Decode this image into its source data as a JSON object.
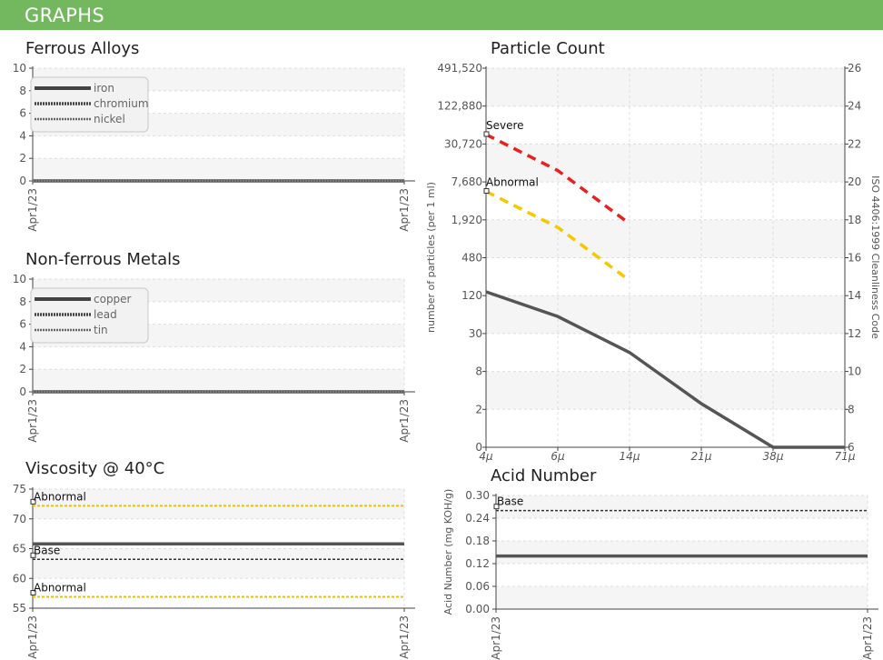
{
  "header": {
    "title": "GRAPHS"
  },
  "colors": {
    "header": "#73b85f",
    "series": "#555555",
    "severe": "#e82020",
    "abnormal_pc": "#f5c800",
    "abnormal_visc": "#f0c000",
    "base": "#333333"
  },
  "chart_data": [
    {
      "id": "ferrous",
      "type": "line",
      "title": "Ferrous Alloys",
      "x": [
        "Apr1/23",
        "Apr1/23"
      ],
      "ylim": [
        0,
        10
      ],
      "yticks": [
        "0",
        "2",
        "4",
        "6",
        "8",
        "10"
      ],
      "legend_position": "top-left",
      "series": [
        {
          "name": "iron",
          "style": "solid",
          "values": [
            0,
            0
          ]
        },
        {
          "name": "chromium",
          "style": "dotted",
          "values": [
            0,
            0
          ]
        },
        {
          "name": "nickel",
          "style": "thin-dotted",
          "values": [
            0,
            0
          ]
        }
      ]
    },
    {
      "id": "nonferrous",
      "type": "line",
      "title": "Non-ferrous Metals",
      "x": [
        "Apr1/23",
        "Apr1/23"
      ],
      "ylim": [
        0,
        10
      ],
      "yticks": [
        "0",
        "2",
        "4",
        "6",
        "8",
        "10"
      ],
      "legend_position": "top-left",
      "series": [
        {
          "name": "copper",
          "style": "solid",
          "values": [
            0,
            0
          ]
        },
        {
          "name": "lead",
          "style": "dotted",
          "values": [
            0,
            0
          ]
        },
        {
          "name": "tin",
          "style": "thin-dotted",
          "values": [
            0,
            0
          ]
        }
      ]
    },
    {
      "id": "viscosity",
      "type": "line",
      "title": "Viscosity @ 40°C",
      "x": [
        "Apr1/23",
        "Apr1/23"
      ],
      "ylim": [
        55,
        75
      ],
      "yticks": [
        "55",
        "60",
        "65",
        "70",
        "75"
      ],
      "series": [
        {
          "values": [
            65.8,
            65.8
          ]
        }
      ],
      "reference_lines": [
        {
          "label": "Abnormal",
          "value": 72.2,
          "style": "abnormal"
        },
        {
          "label": "Base",
          "value": 63.2,
          "style": "base"
        },
        {
          "label": "Abnormal",
          "value": 56.9,
          "style": "abnormal"
        }
      ]
    },
    {
      "id": "particle",
      "type": "line",
      "title": "Particle Count",
      "categories": [
        "4μ",
        "6μ",
        "14μ",
        "21μ",
        "38μ",
        "71μ"
      ],
      "ylabel": "number of particles (per 1 ml)",
      "y2label": "ISO 4406:1999 Cleanliness Code",
      "yticks": [
        "0",
        "2",
        "8",
        "30",
        "120",
        "480",
        "1,920",
        "7,680",
        "30,720",
        "122,880",
        "491,520"
      ],
      "y2ticks": [
        "6",
        "8",
        "10",
        "12",
        "14",
        "16",
        "18",
        "20",
        "22",
        "24",
        "26"
      ],
      "series": [
        {
          "values": [
            14.2,
            12.9,
            11.0,
            8.3,
            6.0,
            6.0
          ]
        }
      ],
      "reference_lines": [
        {
          "label": "Severe",
          "values": [
            22.5,
            20.6,
            17.8
          ],
          "style": "severe"
        },
        {
          "label": "Abnormal",
          "values": [
            19.5,
            17.6,
            14.8
          ],
          "style": "abnormal"
        }
      ]
    },
    {
      "id": "acid",
      "type": "line",
      "title": "Acid Number",
      "x": [
        "Apr1/23",
        "Apr1/23"
      ],
      "ylabel": "Acid Number (mg KOH/g)",
      "ylim": [
        0,
        0.3
      ],
      "yticks": [
        "0.00",
        "0.06",
        "0.12",
        "0.18",
        "0.24",
        "0.30"
      ],
      "series": [
        {
          "values": [
            0.14,
            0.14
          ]
        }
      ],
      "reference_lines": [
        {
          "label": "Base",
          "value": 0.26,
          "style": "base"
        }
      ]
    }
  ]
}
